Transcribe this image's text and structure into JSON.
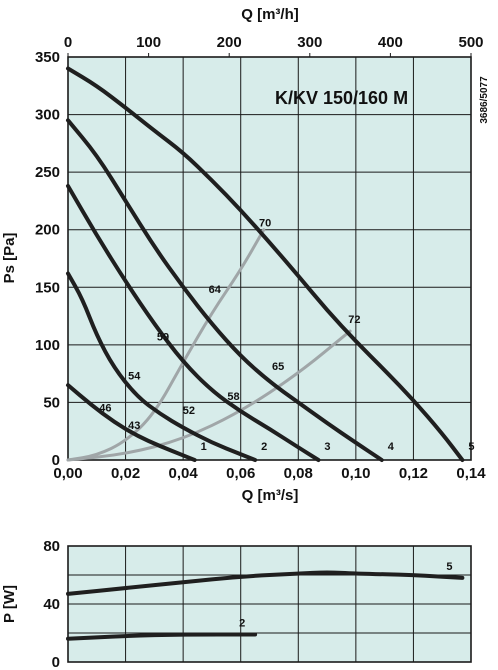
{
  "chart_data": [
    {
      "type": "line",
      "title": "K/KV 150/160 M",
      "code": "3686/5077",
      "xlabel": "Q [m³/s]",
      "x2label": "Q [m³/h]",
      "ylabel": "Ps [Pa]",
      "xlim": [
        0,
        0.14
      ],
      "x2lim": [
        0,
        500
      ],
      "ylim": [
        0,
        350
      ],
      "x_ticks": [
        "0,00",
        "0,02",
        "0,04",
        "0,06",
        "0,08",
        "0,10",
        "0,12",
        "0,14"
      ],
      "x2_ticks": [
        "0",
        "100",
        "200",
        "300",
        "400",
        "500"
      ],
      "y_ticks": [
        "0",
        "50",
        "100",
        "150",
        "200",
        "250",
        "300",
        "350"
      ],
      "grid": true,
      "fan_curves": [
        {
          "label": "1",
          "points": [
            [
              0,
              65
            ],
            [
              0.008,
              48
            ],
            [
              0.016,
              33
            ],
            [
              0.024,
              21
            ],
            [
              0.032,
              12
            ],
            [
              0.04,
              4
            ],
            [
              0.044,
              0
            ]
          ]
        },
        {
          "label": "2",
          "points": [
            [
              0,
              162
            ],
            [
              0.005,
              140
            ],
            [
              0.01,
              108
            ],
            [
              0.016,
              80
            ],
            [
              0.024,
              55
            ],
            [
              0.032,
              40
            ],
            [
              0.04,
              28
            ],
            [
              0.05,
              15
            ],
            [
              0.06,
              5
            ],
            [
              0.065,
              0
            ]
          ]
        },
        {
          "label": "3",
          "points": [
            [
              0,
              238
            ],
            [
              0.01,
              195
            ],
            [
              0.02,
              155
            ],
            [
              0.03,
              118
            ],
            [
              0.04,
              85
            ],
            [
              0.05,
              60
            ],
            [
              0.06,
              42
            ],
            [
              0.07,
              27
            ],
            [
              0.08,
              11
            ],
            [
              0.087,
              0
            ]
          ]
        },
        {
          "label": "4",
          "points": [
            [
              0,
              295
            ],
            [
              0.01,
              265
            ],
            [
              0.02,
              225
            ],
            [
              0.03,
              185
            ],
            [
              0.04,
              150
            ],
            [
              0.05,
              118
            ],
            [
              0.06,
              90
            ],
            [
              0.07,
              68
            ],
            [
              0.08,
              50
            ],
            [
              0.09,
              32
            ],
            [
              0.1,
              15
            ],
            [
              0.109,
              0
            ]
          ]
        },
        {
          "label": "5",
          "points": [
            [
              0,
              340
            ],
            [
              0.01,
              325
            ],
            [
              0.02,
              306
            ],
            [
              0.03,
              286
            ],
            [
              0.04,
              267
            ],
            [
              0.05,
              243
            ],
            [
              0.06,
              217
            ],
            [
              0.07,
              189
            ],
            [
              0.08,
              160
            ],
            [
              0.09,
              130
            ],
            [
              0.1,
              103
            ],
            [
              0.11,
              78
            ],
            [
              0.12,
              52
            ],
            [
              0.13,
              23
            ],
            [
              0.137,
              0
            ]
          ]
        }
      ],
      "system_curves": [
        {
          "points": [
            [
              0,
              0
            ],
            [
              0.01,
              4
            ],
            [
              0.02,
              16
            ],
            [
              0.03,
              40
            ],
            [
              0.04,
              85
            ],
            [
              0.05,
              128
            ],
            [
              0.06,
              165
            ],
            [
              0.068,
              200
            ]
          ]
        },
        {
          "points": [
            [
              0,
              0
            ],
            [
              0.02,
              5
            ],
            [
              0.04,
              18
            ],
            [
              0.06,
              42
            ],
            [
              0.08,
              75
            ],
            [
              0.098,
              112
            ]
          ]
        }
      ],
      "efficiency_labels": [
        {
          "text": "70",
          "x": 0.0685,
          "y": 203
        },
        {
          "text": "64",
          "x": 0.051,
          "y": 145
        },
        {
          "text": "59",
          "x": 0.033,
          "y": 104
        },
        {
          "text": "54",
          "x": 0.023,
          "y": 70
        },
        {
          "text": "46",
          "x": 0.013,
          "y": 42
        },
        {
          "text": "43",
          "x": 0.023,
          "y": 27
        },
        {
          "text": "52",
          "x": 0.042,
          "y": 40
        },
        {
          "text": "58",
          "x": 0.0575,
          "y": 52
        },
        {
          "text": "65",
          "x": 0.073,
          "y": 78
        },
        {
          "text": "72",
          "x": 0.0995,
          "y": 119
        }
      ]
    },
    {
      "type": "line",
      "ylabel": "P [W]",
      "xlim": [
        0,
        0.14
      ],
      "ylim": [
        0,
        80
      ],
      "y_ticks": [
        "0",
        "40",
        "80"
      ],
      "grid": true,
      "power_curves": [
        {
          "label": "5",
          "points": [
            [
              0,
              47
            ],
            [
              0.02,
              51
            ],
            [
              0.04,
              55
            ],
            [
              0.06,
              59
            ],
            [
              0.08,
              61
            ],
            [
              0.09,
              62
            ],
            [
              0.1,
              61
            ],
            [
              0.12,
              60
            ],
            [
              0.137,
              58
            ]
          ]
        },
        {
          "label": "2",
          "points": [
            [
              0,
              16
            ],
            [
              0.02,
              18
            ],
            [
              0.04,
              19
            ],
            [
              0.065,
              19
            ]
          ]
        }
      ]
    }
  ]
}
